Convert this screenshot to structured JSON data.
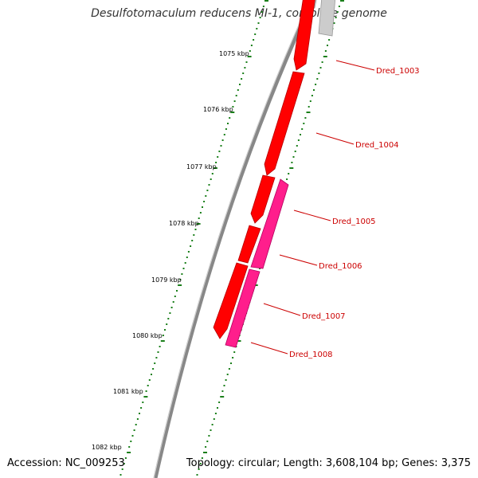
{
  "title": "Desulfotomaculum reducens MI-1, complete genome",
  "footer": {
    "accession": "Accession: NC_009253",
    "summary": "Topology: circular; Length: 3,608,104 bp; Genes: 3,375"
  },
  "ruler": {
    "unit": "kbp",
    "labels": [
      "1075 kbp",
      "1076 kbp",
      "1077 kbp",
      "1078 kbp",
      "1079 kbp",
      "1080 kbp",
      "1081 kbp",
      "1082 kbp"
    ]
  },
  "genes": [
    {
      "name": "Dred_1003",
      "strand": "forward",
      "color": "#ff0000"
    },
    {
      "name": "Dred_1004",
      "strand": "forward",
      "color": "#ff0000"
    },
    {
      "name": "Dred_1005",
      "strand": "forward",
      "color": "#ff0000"
    },
    {
      "name": "Dred_1006",
      "strand": "reverse",
      "color": "#ff1e8c"
    },
    {
      "name": "Dred_1007",
      "strand": "forward",
      "color": "#ff0000"
    },
    {
      "name": "Dred_1008",
      "strand": "reverse",
      "color": "#ff1e8c"
    }
  ],
  "colors": {
    "backbone": "#888888",
    "tick": "#1a7f1a",
    "label_line": "#cc0000",
    "other_feature": "#bbbbbb"
  }
}
